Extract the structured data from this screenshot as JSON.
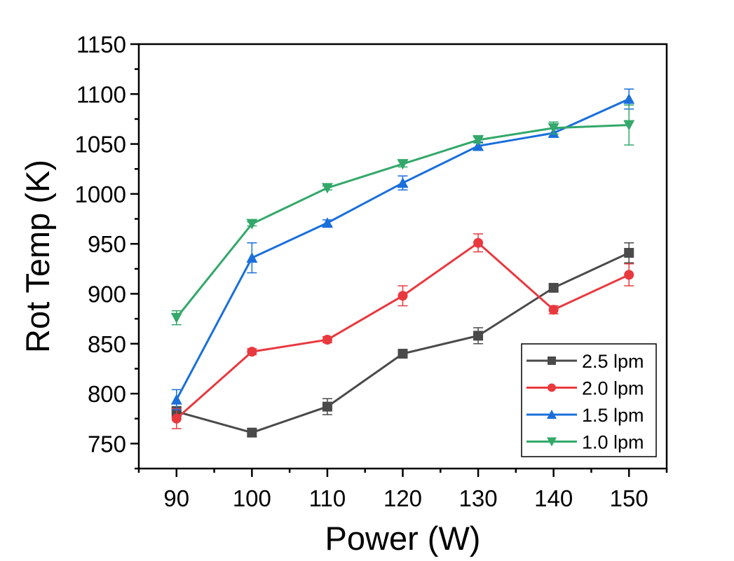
{
  "chart_data": {
    "type": "line",
    "title": "",
    "xlabel": "Power (W)",
    "ylabel": "Rot Temp (K)",
    "x": [
      90,
      100,
      110,
      120,
      130,
      140,
      150
    ],
    "xlim": [
      85,
      155
    ],
    "ylim": [
      725,
      1150
    ],
    "xticks": [
      90,
      100,
      110,
      120,
      130,
      140,
      150
    ],
    "xtick_labels": [
      "90",
      "100",
      "110",
      "120",
      "130",
      "140",
      "150"
    ],
    "yticks": [
      750,
      800,
      850,
      900,
      950,
      1000,
      1050,
      1100,
      1150
    ],
    "ytick_labels": [
      "750",
      "800",
      "850",
      "900",
      "950",
      "1000",
      "1050",
      "1100",
      "1150"
    ],
    "grid": false,
    "legend_position": "bottom-right",
    "series": [
      {
        "name": "2.5 lpm",
        "color": "#4a4a4a",
        "marker": "square",
        "values": [
          782,
          761,
          787,
          840,
          858,
          906,
          941
        ],
        "errors": [
          5,
          4,
          8,
          3,
          8,
          3,
          10
        ]
      },
      {
        "name": "2.0 lpm",
        "color": "#e8393f",
        "marker": "circle",
        "values": [
          775,
          842,
          854,
          898,
          951,
          884,
          919
        ],
        "errors": [
          10,
          3,
          3,
          10,
          9,
          4,
          11
        ]
      },
      {
        "name": "1.5 lpm",
        "color": "#1a6fdb",
        "marker": "triangle-up",
        "values": [
          794,
          936,
          971,
          1011,
          1048,
          1061,
          1095
        ],
        "errors": [
          10,
          15,
          3,
          7,
          4,
          4,
          10
        ]
      },
      {
        "name": "1.0 lpm",
        "color": "#33a86a",
        "marker": "triangle-down",
        "values": [
          876,
          970,
          1006,
          1030,
          1054,
          1066,
          1069
        ],
        "errors": [
          7,
          2,
          2,
          3,
          3,
          6,
          20
        ]
      }
    ]
  }
}
